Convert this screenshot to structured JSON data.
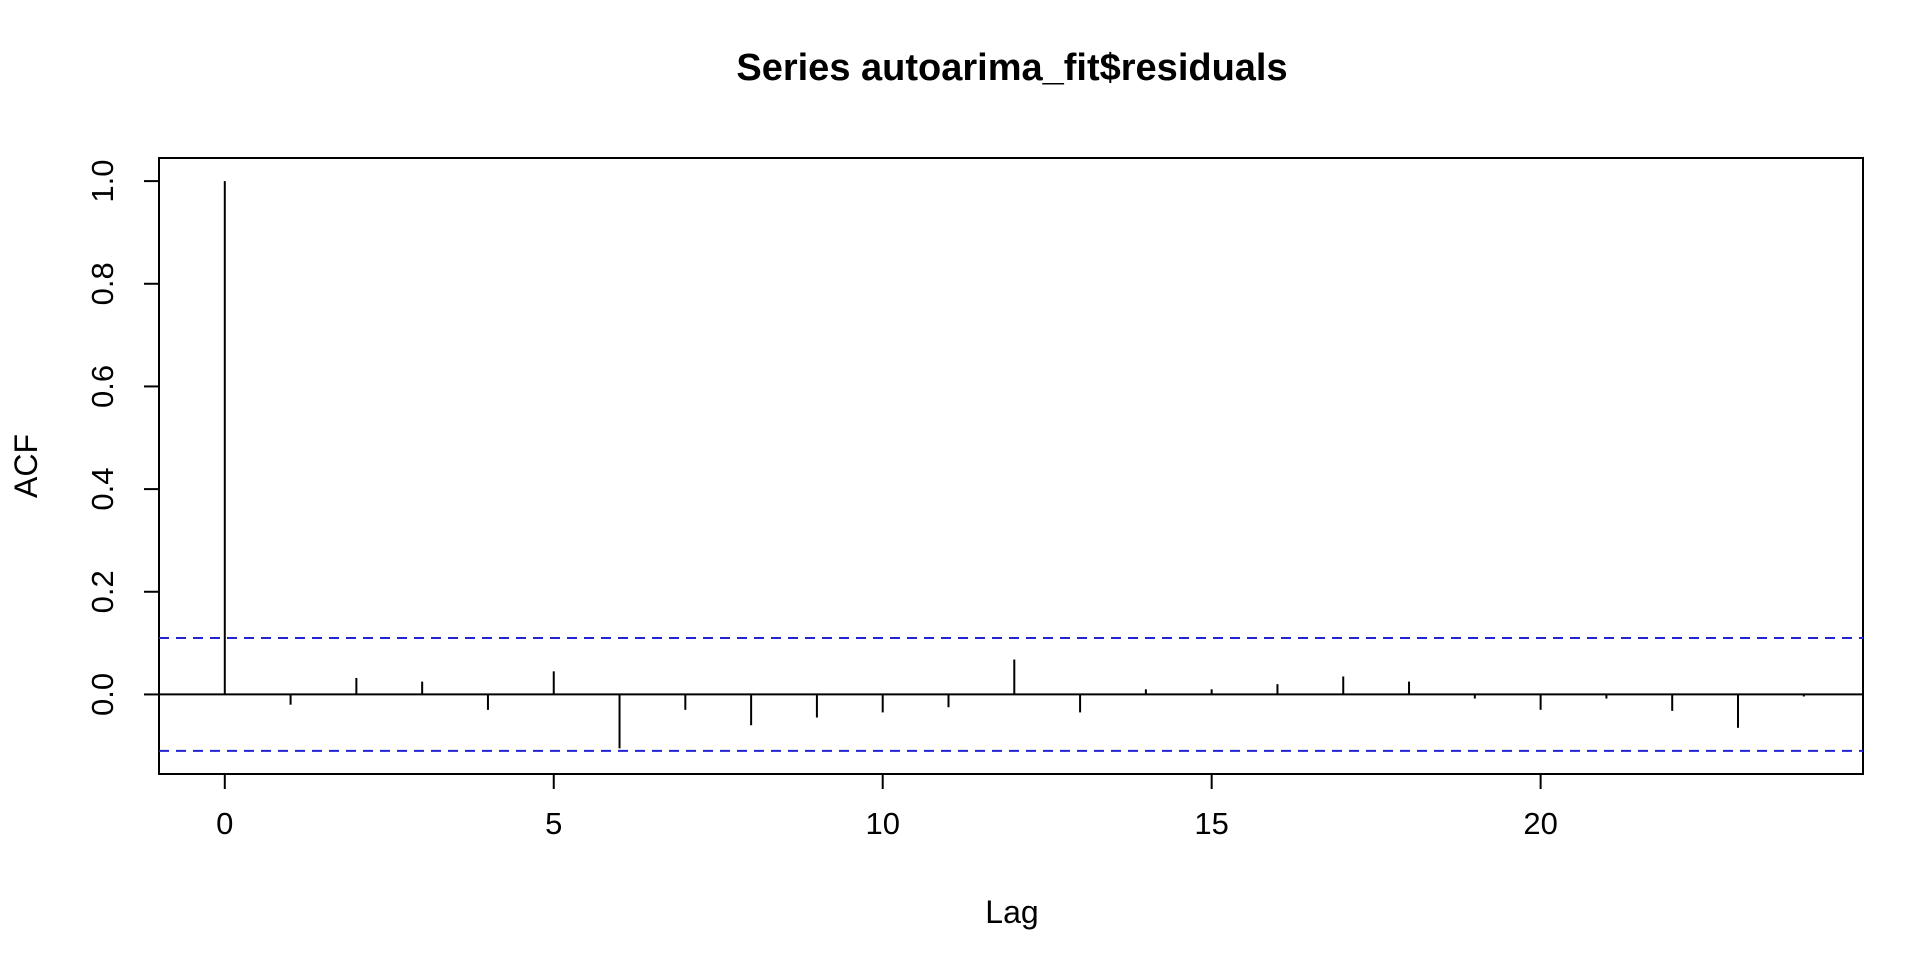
{
  "chart_data": {
    "type": "bar",
    "subtype": "acf-stem",
    "title": "Series  autoarima_fit$residuals",
    "xlabel": "Lag",
    "ylabel": "ACF",
    "xlim": [
      -1,
      24.9
    ],
    "ylim": [
      -0.155,
      1.045
    ],
    "x_ticks": [
      0,
      5,
      10,
      15,
      20
    ],
    "y_ticks": [
      0.0,
      0.2,
      0.4,
      0.6,
      0.8,
      1.0
    ],
    "x_tick_labels": [
      "0",
      "5",
      "10",
      "15",
      "20"
    ],
    "y_tick_labels": [
      "0.0",
      "0.2",
      "0.4",
      "0.6",
      "0.8",
      "1.0"
    ],
    "lags": [
      0,
      1,
      2,
      3,
      4,
      5,
      6,
      7,
      8,
      9,
      10,
      11,
      12,
      13,
      14,
      15,
      16,
      17,
      18,
      19,
      20,
      21,
      22,
      23,
      24
    ],
    "values": [
      1.0,
      -0.02,
      0.032,
      0.025,
      -0.03,
      0.045,
      -0.105,
      -0.03,
      -0.06,
      -0.045,
      -0.035,
      -0.025,
      0.068,
      -0.035,
      0.01,
      0.01,
      0.02,
      0.035,
      0.025,
      -0.008,
      -0.03,
      -0.008,
      -0.032,
      -0.065,
      -0.004
    ],
    "confidence_bounds": [
      0.11,
      -0.11
    ],
    "colors": {
      "stems": "#000000",
      "confidence_lines": "#2323d6",
      "zero_line": "#000000",
      "frame": "#000000"
    },
    "grid": false,
    "legend": "none"
  }
}
